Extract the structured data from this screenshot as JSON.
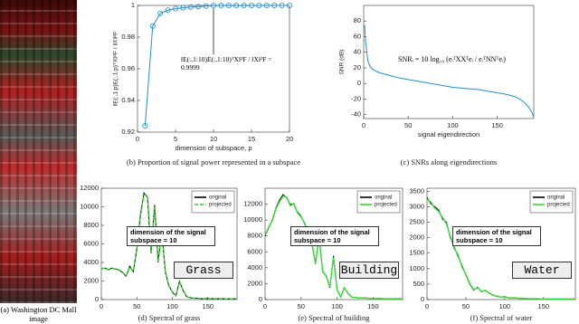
{
  "image_caption": "(a) Washington DC Mall image",
  "chart_data": [
    {
      "type": "line",
      "caption": "(b) Proportion of signal power represented in a subspace",
      "xlabel": "dimension of subspace, p",
      "ylabel": "‖E(:,1:p)E(:,1:p)ᵀX‖²F / ‖X‖²F",
      "annotation": "‖E(:,1:10)E(:,1:10)ᵀX‖²F / ‖X‖²F = 0.9999",
      "x": [
        1,
        2,
        3,
        4,
        5,
        6,
        7,
        8,
        9,
        10,
        11,
        12,
        13,
        14,
        15,
        16,
        17,
        18,
        19,
        20
      ],
      "series": [
        {
          "color": "#1f8fd0",
          "values": [
            0.924,
            0.987,
            0.995,
            0.997,
            0.998,
            0.9985,
            0.999,
            0.9993,
            0.9996,
            0.9999,
            0.9999,
            0.9999,
            0.9999,
            0.9999,
            1,
            1,
            1,
            1,
            1,
            1
          ]
        }
      ],
      "marker": "circle",
      "xlim": [
        0,
        20
      ],
      "ylim": [
        0.92,
        1
      ],
      "xticks": [
        0,
        5,
        10,
        15,
        20
      ],
      "yticks": [
        0.92,
        0.94,
        0.96,
        0.98,
        1
      ]
    },
    {
      "type": "line",
      "caption": "(c) SNRs along eigendirections",
      "xlabel": "signal eigendirection",
      "ylabel": "SNR (dB)",
      "annotation": "SNRᵢ = 10 log₁₀ (eᵢᵀXXᵀeᵢ / eᵢᵀNNᵀeᵢ)",
      "x": [
        1,
        2,
        3,
        4,
        5,
        7,
        10,
        15,
        20,
        30,
        40,
        50,
        60,
        70,
        80,
        90,
        100,
        110,
        120,
        130,
        140,
        150,
        160,
        170,
        175,
        180,
        185,
        188,
        191
      ],
      "series": [
        {
          "color": "#1f8fd0",
          "values": [
            75,
            55,
            45,
            35,
            28,
            22,
            18,
            15,
            13,
            10,
            7,
            5,
            3,
            1,
            -1,
            -3,
            -5,
            -6,
            -7,
            -8,
            -10,
            -12,
            -14,
            -17,
            -20,
            -24,
            -30,
            -35,
            -43
          ]
        }
      ],
      "xlim": [
        0,
        191
      ],
      "ylim": [
        -45,
        100
      ],
      "xticks": [
        0,
        50,
        100,
        150
      ],
      "yticks": [
        -40,
        -20,
        0,
        20,
        40,
        60,
        80
      ]
    },
    {
      "type": "line",
      "caption": "(d) Spectral of grass",
      "note": "dimension of the signal subspace = 10",
      "material": "Grass",
      "x": [
        0,
        5,
        10,
        15,
        20,
        25,
        30,
        35,
        40,
        45,
        50,
        55,
        60,
        65,
        70,
        75,
        80,
        85,
        90,
        95,
        100,
        105,
        110,
        115,
        120,
        125,
        130,
        135,
        140,
        145,
        150,
        155,
        160,
        165,
        170,
        175,
        180,
        185,
        190
      ],
      "series": [
        {
          "name": "original",
          "color": "#000000",
          "values": [
            3300,
            3400,
            3200,
            3400,
            3300,
            3200,
            2900,
            2500,
            3600,
            3000,
            5500,
            9000,
            11500,
            11000,
            5000,
            10200,
            4000,
            7500,
            3000,
            1500,
            800,
            400,
            2000,
            1000,
            300,
            200,
            150,
            150,
            100,
            100,
            100,
            100,
            100,
            100,
            100,
            80,
            80,
            80,
            80
          ]
        },
        {
          "name": "projected",
          "color": "#33cc33",
          "dashed": true,
          "values": [
            3350,
            3380,
            3250,
            3350,
            3300,
            3150,
            2950,
            2550,
            3500,
            3050,
            5400,
            9200,
            11300,
            11200,
            5100,
            10000,
            4100,
            7300,
            3100,
            1450,
            850,
            450,
            1900,
            1050,
            320,
            210,
            160,
            140,
            110,
            100,
            100,
            100,
            100,
            100,
            100,
            80,
            80,
            80,
            80
          ]
        }
      ],
      "xlim": [
        0,
        191
      ],
      "ylim": [
        0,
        12000
      ],
      "xticks": [
        0,
        50,
        100,
        150
      ],
      "yticks": [
        0,
        2000,
        4000,
        6000,
        8000,
        10000,
        12000
      ]
    },
    {
      "type": "line",
      "caption": "(e) Spectral of building",
      "note": "dimension of the signal subspace = 10",
      "material": "Building",
      "x": [
        0,
        5,
        10,
        15,
        20,
        25,
        30,
        35,
        40,
        45,
        50,
        55,
        60,
        65,
        70,
        75,
        80,
        85,
        90,
        95,
        100,
        105,
        110,
        115,
        120,
        125,
        130,
        135,
        140,
        145,
        150,
        155,
        160,
        165,
        170,
        175,
        180,
        185,
        190
      ],
      "series": [
        {
          "name": "original",
          "color": "#000000",
          "values": [
            8000,
            9000,
            10000,
            11500,
            12500,
            13200,
            12800,
            12000,
            12000,
            11000,
            10500,
            9500,
            8500,
            7000,
            4500,
            8000,
            3500,
            3000,
            1500,
            5500,
            1200,
            300,
            1500,
            800,
            300,
            250,
            200,
            200,
            200,
            150,
            150,
            150,
            150,
            100,
            100,
            100,
            100,
            100,
            100
          ]
        },
        {
          "name": "projected",
          "color": "#33dd33",
          "values": [
            8100,
            9100,
            9900,
            11400,
            12300,
            13000,
            12900,
            11800,
            12100,
            10900,
            10400,
            9600,
            8400,
            7100,
            4600,
            7800,
            3600,
            2900,
            1600,
            5300,
            1250,
            320,
            1450,
            820,
            310,
            250,
            210,
            200,
            190,
            150,
            150,
            150,
            140,
            100,
            100,
            100,
            100,
            100,
            100
          ]
        }
      ],
      "xlim": [
        0,
        191
      ],
      "ylim": [
        0,
        14000
      ],
      "xticks": [
        0,
        50,
        100,
        150
      ],
      "yticks": [
        0,
        2000,
        4000,
        6000,
        8000,
        10000,
        12000
      ]
    },
    {
      "type": "line",
      "caption": "(f) Spectral of water",
      "note": "dimension of the signal subspace = 10",
      "material": "Water",
      "x": [
        0,
        5,
        10,
        15,
        20,
        25,
        30,
        35,
        40,
        45,
        50,
        55,
        60,
        65,
        70,
        75,
        80,
        85,
        90,
        95,
        100,
        105,
        110,
        115,
        120,
        125,
        130,
        135,
        140,
        145,
        150,
        155,
        160,
        165,
        170,
        175,
        180,
        185,
        190
      ],
      "series": [
        {
          "name": "original",
          "color": "#000000",
          "values": [
            3300,
            3100,
            3000,
            2900,
            2600,
            2500,
            2000,
            1700,
            1400,
            1100,
            800,
            500,
            300,
            400,
            250,
            300,
            200,
            150,
            100,
            80,
            100,
            50,
            60,
            50,
            40,
            40,
            30,
            30,
            30,
            20,
            20,
            20,
            20,
            20,
            20,
            20,
            20,
            20,
            20
          ]
        },
        {
          "name": "projected",
          "color": "#33dd33",
          "values": [
            3250,
            3150,
            2950,
            2850,
            2650,
            2450,
            2050,
            1650,
            1450,
            1050,
            820,
            520,
            320,
            380,
            260,
            290,
            210,
            140,
            110,
            80,
            90,
            60,
            50,
            50,
            40,
            40,
            30,
            30,
            30,
            20,
            20,
            20,
            20,
            20,
            20,
            20,
            20,
            20,
            20
          ]
        }
      ],
      "xlim": [
        0,
        191
      ],
      "ylim": [
        0,
        3600
      ],
      "xticks": [
        0,
        50,
        100,
        150
      ],
      "yticks": [
        0,
        500,
        1000,
        1500,
        2000,
        2500,
        3000,
        3500
      ]
    }
  ]
}
